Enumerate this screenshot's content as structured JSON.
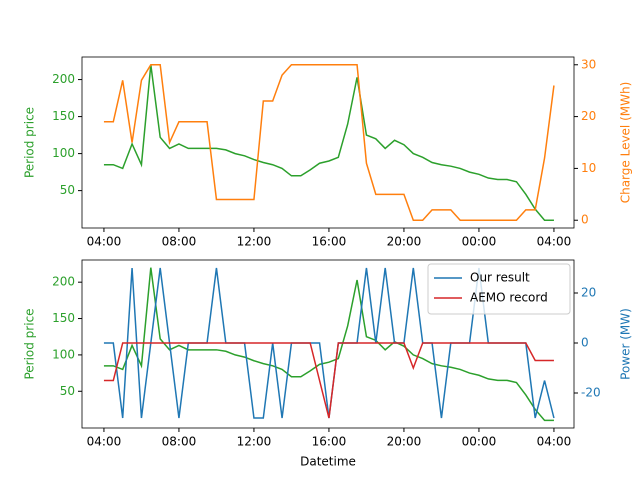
{
  "chart_data": [
    {
      "type": "line",
      "y_label": "Period price",
      "y2_label": "Charge Level (MWh)",
      "x": [
        4,
        4.5,
        5,
        5.5,
        6,
        6.5,
        7,
        7.5,
        8,
        8.5,
        9,
        9.5,
        10,
        10.5,
        11,
        11.5,
        12,
        12.5,
        13,
        13.5,
        14,
        14.5,
        15,
        15.5,
        16,
        16.5,
        17,
        17.5,
        18,
        18.5,
        19,
        19.5,
        20,
        20.5,
        21,
        21.5,
        22,
        22.5,
        23,
        23.5,
        24,
        24.5,
        25,
        25.5,
        26,
        26.5,
        27,
        27.5,
        28
      ],
      "xlim": [
        2.83,
        29.07
      ],
      "xticks": [
        {
          "value": 4,
          "label": "04:00"
        },
        {
          "value": 8,
          "label": "08:00"
        },
        {
          "value": 12,
          "label": "12:00"
        },
        {
          "value": 16,
          "label": "16:00"
        },
        {
          "value": 20,
          "label": "20:00"
        },
        {
          "value": 24,
          "label": "00:00"
        },
        {
          "value": 28,
          "label": "04:00"
        }
      ],
      "ylim": [
        -0.5,
        230.5
      ],
      "yticks": [
        50,
        100,
        150,
        200
      ],
      "y2lim": [
        -1.5,
        31.5
      ],
      "y2ticks": [
        0,
        10,
        20,
        30
      ],
      "series": [
        {
          "name": "Period price",
          "color": "#2ca02c",
          "axis": "y",
          "values": [
            85,
            85,
            80,
            113,
            85,
            220,
            122,
            107,
            113,
            107,
            107,
            107,
            107,
            105,
            100,
            97,
            92,
            88,
            85,
            80,
            70,
            70,
            78,
            87,
            90,
            95,
            140,
            203,
            125,
            120,
            107,
            118,
            112,
            100,
            95,
            88,
            85,
            83,
            80,
            75,
            72,
            67,
            65,
            65,
            62,
            45,
            25,
            10,
            10
          ]
        },
        {
          "name": "Charge Level",
          "color": "#ff7f0e",
          "axis": "y2",
          "values": [
            19,
            19,
            27,
            15,
            27,
            30,
            30,
            15,
            19,
            19,
            19,
            19,
            4,
            4,
            4,
            4,
            4,
            23,
            23,
            28,
            30,
            30,
            30,
            30,
            30,
            30,
            30,
            30,
            11,
            5,
            5,
            5,
            5,
            0,
            0,
            2,
            2,
            2,
            0,
            0,
            0,
            0,
            0,
            0,
            0,
            2,
            2,
            12,
            26
          ]
        }
      ]
    },
    {
      "type": "line",
      "y_label": "Period price",
      "y2_label": "Power (MW)",
      "x_label": "Datetime",
      "legend": "upper right",
      "x": [
        4,
        4.5,
        5,
        5.5,
        6,
        6.5,
        7,
        7.5,
        8,
        8.5,
        9,
        9.5,
        10,
        10.5,
        11,
        11.5,
        12,
        12.5,
        13,
        13.5,
        14,
        14.5,
        15,
        15.5,
        16,
        16.5,
        17,
        17.5,
        18,
        18.5,
        19,
        19.5,
        20,
        20.5,
        21,
        21.5,
        22,
        22.5,
        23,
        23.5,
        24,
        24.5,
        25,
        25.5,
        26,
        26.5,
        27,
        27.5,
        28
      ],
      "xlim": [
        2.83,
        29.07
      ],
      "xticks": [
        {
          "value": 4,
          "label": "04:00"
        },
        {
          "value": 8,
          "label": "08:00"
        },
        {
          "value": 12,
          "label": "12:00"
        },
        {
          "value": 16,
          "label": "16:00"
        },
        {
          "value": 20,
          "label": "20:00"
        },
        {
          "value": 24,
          "label": "00:00"
        },
        {
          "value": 28,
          "label": "04:00"
        }
      ],
      "ylim": [
        -0.5,
        230.5
      ],
      "yticks": [
        50,
        100,
        150,
        200
      ],
      "y2lim": [
        -34,
        33.2
      ],
      "y2ticks": [
        -20,
        0,
        20
      ],
      "series": [
        {
          "name": "Period price",
          "color": "#2ca02c",
          "axis": "y",
          "values": [
            85,
            85,
            80,
            113,
            85,
            220,
            122,
            107,
            113,
            107,
            107,
            107,
            107,
            105,
            100,
            97,
            92,
            88,
            85,
            80,
            70,
            70,
            78,
            87,
            90,
            95,
            140,
            203,
            125,
            120,
            107,
            118,
            112,
            100,
            95,
            88,
            85,
            83,
            80,
            75,
            72,
            67,
            65,
            65,
            62,
            45,
            25,
            10,
            10
          ]
        },
        {
          "name": "Our result",
          "color": "#1f77b4",
          "axis": "y2",
          "values": [
            0,
            0,
            -30,
            30,
            -30,
            0,
            30,
            0,
            -30,
            0,
            0,
            0,
            30,
            0,
            0,
            0,
            -30,
            -30,
            0,
            -30,
            0,
            0,
            0,
            0,
            -30,
            0,
            0,
            0,
            30,
            0,
            30,
            0,
            0,
            30,
            0,
            0,
            -30,
            0,
            0,
            0,
            30,
            0,
            0,
            0,
            0,
            0,
            -30,
            -15,
            -30
          ]
        },
        {
          "name": "AEMO record",
          "color": "#d62728",
          "axis": "y2",
          "values": [
            -15,
            -15,
            0,
            0,
            0,
            0,
            0,
            0,
            0,
            0,
            0,
            0,
            0,
            0,
            0,
            0,
            0,
            0,
            0,
            0,
            0,
            0,
            0,
            -15,
            -30,
            0,
            0,
            0,
            0,
            0,
            0,
            0,
            0,
            -10,
            0,
            0,
            0,
            0,
            0,
            0,
            0,
            0,
            0,
            0,
            0,
            0,
            -7,
            -7,
            -7
          ]
        }
      ]
    }
  ]
}
